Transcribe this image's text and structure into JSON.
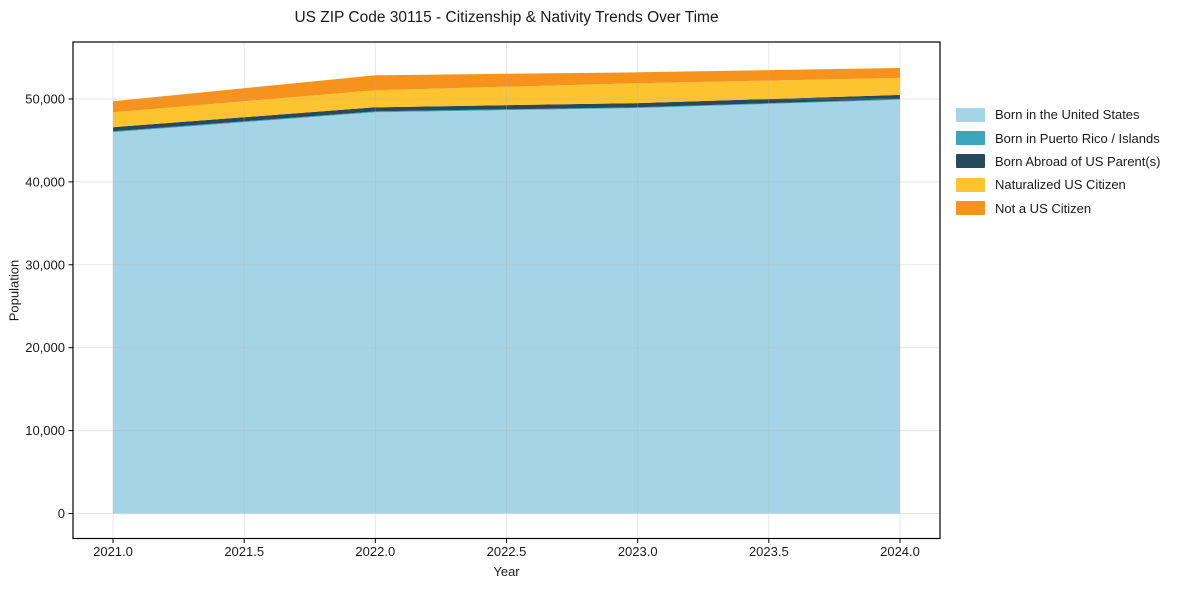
{
  "title": "US ZIP Code 30115 - Citizenship & Nativity Trends Over Time",
  "chart_data": {
    "type": "area",
    "stacked": true,
    "title": "US ZIP Code 30115 - Citizenship & Nativity Trends Over Time",
    "xlabel": "Year",
    "ylabel": "Population",
    "x": [
      2021,
      2022,
      2023,
      2024
    ],
    "series": [
      {
        "name": "Born in the United States",
        "color": "#a4d4e6",
        "values": [
          46000,
          48400,
          48900,
          49900
        ]
      },
      {
        "name": "Born in Puerto Rico / Islands",
        "color": "#3ba6bd",
        "values": [
          100,
          100,
          100,
          100
        ]
      },
      {
        "name": "Born Abroad of US Parent(s)",
        "color": "#26495c",
        "values": [
          500,
          500,
          500,
          500
        ]
      },
      {
        "name": "Naturalized US Citizen",
        "color": "#fdc42f",
        "values": [
          1800,
          2050,
          2400,
          2050
        ]
      },
      {
        "name": "Not a US Citizen",
        "color": "#f6931d",
        "values": [
          1330,
          1810,
          1320,
          1200
        ]
      }
    ],
    "totals": [
      49730,
      52860,
      53220,
      53750
    ],
    "xticks": [
      2021.0,
      2021.5,
      2022.0,
      2022.5,
      2023.0,
      2023.5,
      2024.0
    ],
    "xtick_labels": [
      "2021.0",
      "2021.5",
      "2022.0",
      "2022.5",
      "2023.0",
      "2023.5",
      "2024.0"
    ],
    "yticks": [
      0,
      10000,
      20000,
      30000,
      40000,
      50000
    ],
    "ytick_labels": [
      "0",
      "10,000",
      "20,000",
      "30,000",
      "40,000",
      "50,000"
    ],
    "xlim": [
      2020.85,
      2024.15
    ],
    "ylim": [
      -3000,
      56900
    ],
    "grid": true,
    "legend_position": "right",
    "colors": {
      "grid": "#b0b0b0",
      "spine": "#000000",
      "text": "#1a1a1a",
      "background": "#ffffff"
    }
  }
}
